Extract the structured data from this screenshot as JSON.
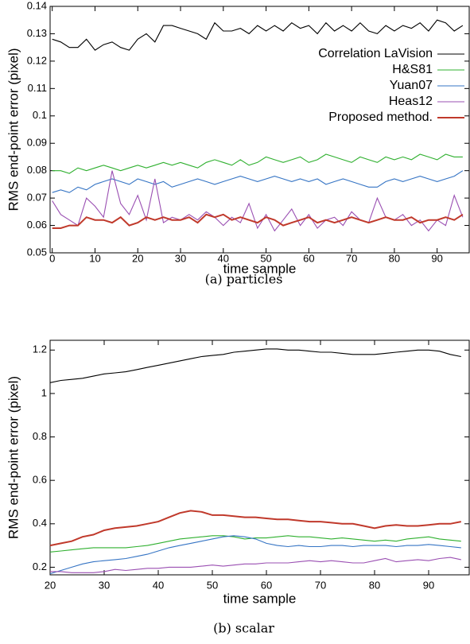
{
  "chart_data": [
    {
      "type": "line",
      "caption": "(a) particles",
      "x_label": "time sample",
      "y_label": "RMS end-point error (pixel)",
      "x": [
        0,
        2,
        4,
        6,
        8,
        10,
        12,
        14,
        16,
        18,
        20,
        22,
        24,
        26,
        28,
        30,
        32,
        34,
        36,
        38,
        40,
        42,
        44,
        46,
        48,
        50,
        52,
        54,
        56,
        58,
        60,
        62,
        64,
        66,
        68,
        70,
        72,
        74,
        76,
        78,
        80,
        82,
        84,
        86,
        88,
        90,
        92,
        94,
        96
      ],
      "xlim": [
        -0.5,
        97.5
      ],
      "ylim": [
        0.05,
        0.14
      ],
      "xticks": [
        0,
        10,
        20,
        30,
        40,
        50,
        60,
        70,
        80,
        90
      ],
      "yticks": [
        0.05,
        0.06,
        0.07,
        0.08,
        0.09,
        0.1,
        0.11,
        0.12,
        0.13,
        0.14
      ],
      "legend": "upper right",
      "series": [
        {
          "name": "Correlation LaVision",
          "color": "#000000",
          "values": [
            0.128,
            0.127,
            0.125,
            0.125,
            0.128,
            0.124,
            0.126,
            0.127,
            0.125,
            0.124,
            0.128,
            0.13,
            0.127,
            0.133,
            0.133,
            0.132,
            0.131,
            0.13,
            0.128,
            0.134,
            0.131,
            0.131,
            0.132,
            0.13,
            0.133,
            0.131,
            0.133,
            0.131,
            0.134,
            0.132,
            0.133,
            0.13,
            0.134,
            0.131,
            0.133,
            0.131,
            0.134,
            0.131,
            0.13,
            0.133,
            0.131,
            0.133,
            0.132,
            0.134,
            0.131,
            0.135,
            0.134,
            0.131,
            0.133
          ]
        },
        {
          "name": "H&S81",
          "color": "#2fb02f",
          "values": [
            0.08,
            0.08,
            0.079,
            0.081,
            0.08,
            0.081,
            0.082,
            0.081,
            0.08,
            0.081,
            0.082,
            0.081,
            0.082,
            0.083,
            0.082,
            0.083,
            0.082,
            0.081,
            0.083,
            0.084,
            0.083,
            0.082,
            0.084,
            0.082,
            0.083,
            0.085,
            0.084,
            0.083,
            0.084,
            0.085,
            0.083,
            0.084,
            0.086,
            0.085,
            0.084,
            0.083,
            0.085,
            0.084,
            0.083,
            0.085,
            0.084,
            0.085,
            0.084,
            0.086,
            0.085,
            0.084,
            0.086,
            0.085,
            0.085
          ]
        },
        {
          "name": "Yuan07",
          "color": "#3574c4",
          "values": [
            0.072,
            0.073,
            0.072,
            0.074,
            0.073,
            0.075,
            0.076,
            0.077,
            0.076,
            0.075,
            0.077,
            0.076,
            0.075,
            0.076,
            0.074,
            0.075,
            0.076,
            0.077,
            0.076,
            0.075,
            0.076,
            0.077,
            0.078,
            0.077,
            0.076,
            0.077,
            0.078,
            0.077,
            0.076,
            0.077,
            0.076,
            0.077,
            0.075,
            0.076,
            0.077,
            0.076,
            0.075,
            0.074,
            0.074,
            0.076,
            0.077,
            0.076,
            0.077,
            0.078,
            0.077,
            0.076,
            0.077,
            0.078,
            0.08
          ]
        },
        {
          "name": "Heas12",
          "color": "#9a4fb2",
          "values": [
            0.069,
            0.064,
            0.062,
            0.06,
            0.07,
            0.067,
            0.063,
            0.08,
            0.068,
            0.064,
            0.071,
            0.062,
            0.077,
            0.061,
            0.063,
            0.062,
            0.064,
            0.062,
            0.065,
            0.063,
            0.06,
            0.063,
            0.061,
            0.068,
            0.059,
            0.064,
            0.058,
            0.062,
            0.066,
            0.06,
            0.064,
            0.059,
            0.062,
            0.063,
            0.06,
            0.065,
            0.062,
            0.061,
            0.07,
            0.063,
            0.062,
            0.064,
            0.06,
            0.062,
            0.058,
            0.062,
            0.06,
            0.071,
            0.063
          ]
        },
        {
          "name": "Proposed method.",
          "color": "#c0392b",
          "values": [
            0.059,
            0.059,
            0.06,
            0.06,
            0.063,
            0.062,
            0.062,
            0.061,
            0.063,
            0.06,
            0.061,
            0.063,
            0.062,
            0.063,
            0.062,
            0.062,
            0.063,
            0.061,
            0.064,
            0.063,
            0.064,
            0.062,
            0.063,
            0.062,
            0.061,
            0.063,
            0.062,
            0.06,
            0.061,
            0.062,
            0.063,
            0.061,
            0.062,
            0.061,
            0.062,
            0.063,
            0.062,
            0.061,
            0.062,
            0.063,
            0.062,
            0.062,
            0.063,
            0.061,
            0.062,
            0.062,
            0.063,
            0.062,
            0.064
          ]
        }
      ]
    },
    {
      "type": "line",
      "caption": "(b) scalar",
      "x_label": "time sample",
      "y_label": "RMS end-point error (pixel)",
      "x": [
        20,
        22,
        24,
        26,
        28,
        30,
        32,
        34,
        36,
        38,
        40,
        42,
        44,
        46,
        48,
        50,
        52,
        54,
        56,
        58,
        60,
        62,
        64,
        66,
        68,
        70,
        72,
        74,
        76,
        78,
        80,
        82,
        84,
        86,
        88,
        90,
        92,
        94,
        96
      ],
      "xlim": [
        20,
        97.5
      ],
      "ylim": [
        0.165,
        1.245
      ],
      "xticks": [
        20,
        30,
        40,
        50,
        60,
        70,
        80,
        90
      ],
      "yticks": [
        0.2,
        0.4,
        0.6,
        0.8,
        1,
        1.2
      ],
      "series": [
        {
          "color": "#000000",
          "values": [
            1.05,
            1.06,
            1.065,
            1.07,
            1.08,
            1.09,
            1.095,
            1.1,
            1.11,
            1.12,
            1.13,
            1.14,
            1.15,
            1.16,
            1.17,
            1.175,
            1.18,
            1.19,
            1.195,
            1.2,
            1.205,
            1.205,
            1.2,
            1.2,
            1.195,
            1.19,
            1.19,
            1.185,
            1.18,
            1.18,
            1.18,
            1.185,
            1.19,
            1.195,
            1.2,
            1.2,
            1.195,
            1.18,
            1.17
          ]
        },
        {
          "color": "#2fb02f",
          "values": [
            0.27,
            0.275,
            0.28,
            0.285,
            0.29,
            0.29,
            0.29,
            0.29,
            0.295,
            0.3,
            0.31,
            0.32,
            0.33,
            0.335,
            0.34,
            0.345,
            0.345,
            0.34,
            0.33,
            0.335,
            0.335,
            0.34,
            0.345,
            0.34,
            0.34,
            0.335,
            0.33,
            0.335,
            0.33,
            0.325,
            0.32,
            0.325,
            0.32,
            0.33,
            0.335,
            0.34,
            0.33,
            0.325,
            0.32
          ]
        },
        {
          "color": "#3574c4",
          "values": [
            0.17,
            0.185,
            0.2,
            0.215,
            0.225,
            0.23,
            0.235,
            0.24,
            0.25,
            0.26,
            0.275,
            0.29,
            0.3,
            0.31,
            0.32,
            0.33,
            0.34,
            0.345,
            0.34,
            0.33,
            0.31,
            0.3,
            0.295,
            0.3,
            0.295,
            0.295,
            0.3,
            0.3,
            0.295,
            0.3,
            0.3,
            0.3,
            0.295,
            0.3,
            0.3,
            0.305,
            0.3,
            0.295,
            0.29
          ]
        },
        {
          "color": "#9a4fb2",
          "values": [
            0.18,
            0.18,
            0.175,
            0.175,
            0.175,
            0.18,
            0.19,
            0.185,
            0.19,
            0.195,
            0.195,
            0.2,
            0.2,
            0.2,
            0.205,
            0.21,
            0.205,
            0.21,
            0.215,
            0.215,
            0.22,
            0.22,
            0.22,
            0.225,
            0.23,
            0.225,
            0.23,
            0.225,
            0.22,
            0.22,
            0.23,
            0.24,
            0.225,
            0.23,
            0.235,
            0.23,
            0.24,
            0.245,
            0.235
          ]
        },
        {
          "color": "#c0392b",
          "values": [
            0.3,
            0.31,
            0.32,
            0.34,
            0.35,
            0.37,
            0.38,
            0.385,
            0.39,
            0.4,
            0.41,
            0.43,
            0.45,
            0.46,
            0.455,
            0.44,
            0.44,
            0.435,
            0.43,
            0.43,
            0.425,
            0.42,
            0.42,
            0.415,
            0.41,
            0.41,
            0.405,
            0.4,
            0.4,
            0.39,
            0.38,
            0.39,
            0.395,
            0.39,
            0.39,
            0.395,
            0.4,
            0.4,
            0.41
          ]
        }
      ]
    }
  ]
}
